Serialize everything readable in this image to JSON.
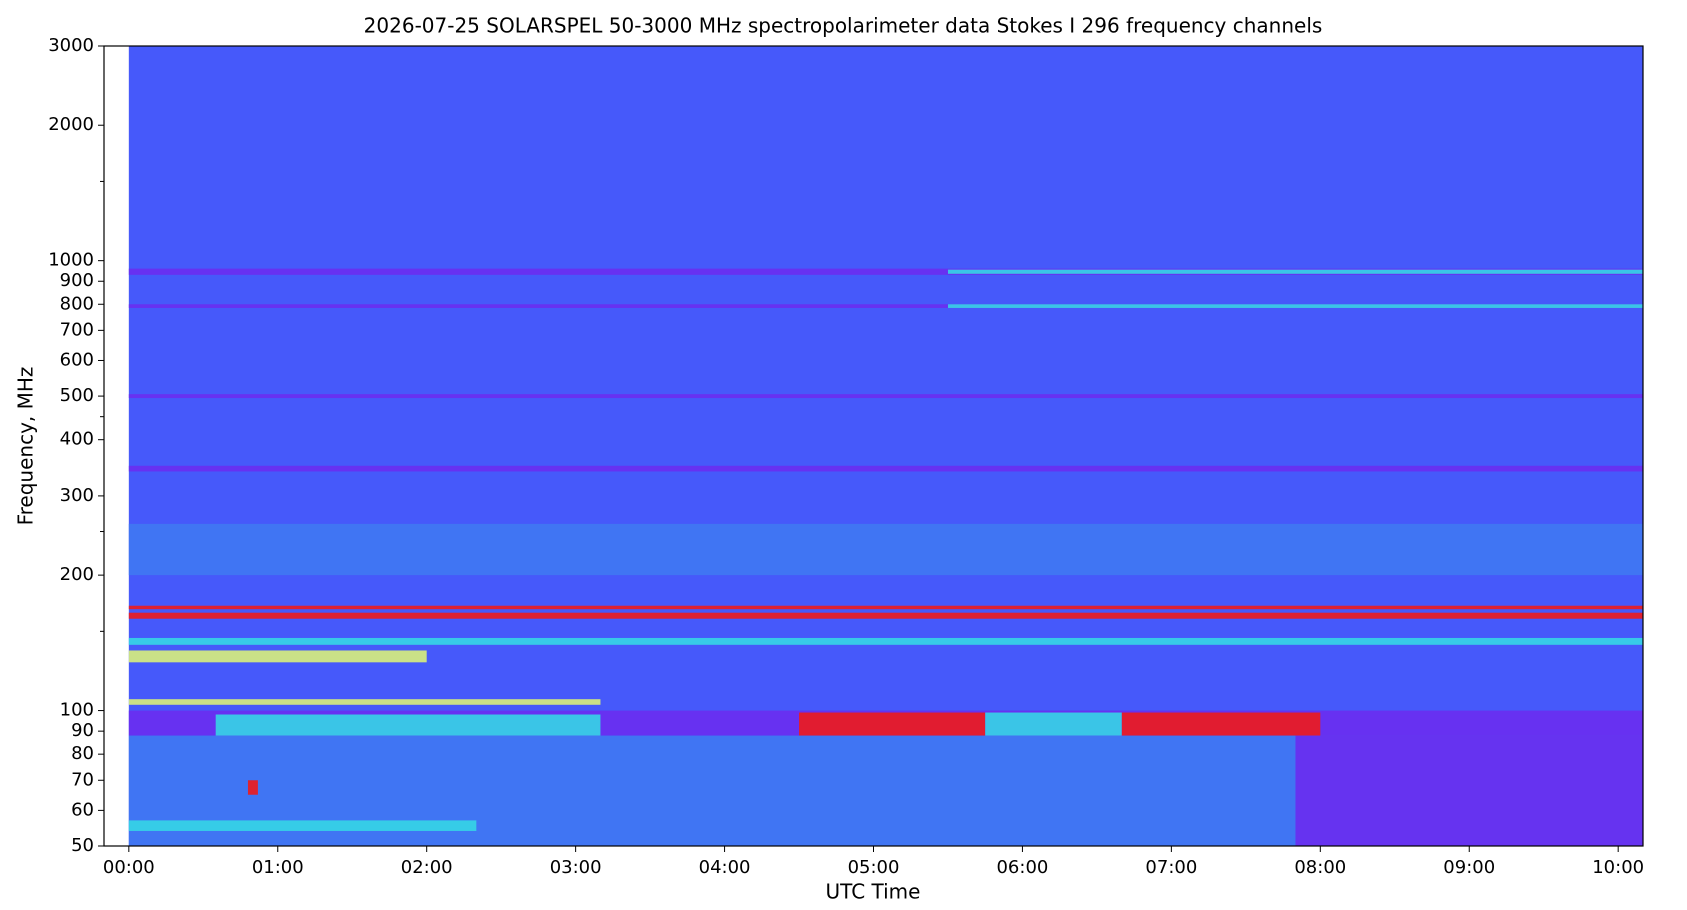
{
  "chart_data": {
    "type": "spectrogram",
    "title": "2026-07-25      SOLARSPEL   50-3000 MHz spectropolarimeter data      Stokes I   296 frequency channels",
    "xlabel": "UTC Time",
    "ylabel": "Frequency, MHz",
    "xlim": [
      -10,
      610
    ],
    "xticks": [
      {
        "value": 0,
        "label": "00:00"
      },
      {
        "value": 60,
        "label": "01:00"
      },
      {
        "value": 120,
        "label": "02:00"
      },
      {
        "value": 180,
        "label": "03:00"
      },
      {
        "value": 240,
        "label": "04:00"
      },
      {
        "value": 300,
        "label": "05:00"
      },
      {
        "value": 360,
        "label": "06:00"
      },
      {
        "value": 420,
        "label": "07:00"
      },
      {
        "value": 480,
        "label": "08:00"
      },
      {
        "value": 540,
        "label": "09:00"
      },
      {
        "value": 600,
        "label": "10:00"
      }
    ],
    "ylim": [
      50,
      3000
    ],
    "log_y": true,
    "yticks": [
      50,
      60,
      70,
      80,
      90,
      100,
      200,
      300,
      400,
      500,
      600,
      700,
      800,
      900,
      1000,
      2000,
      3000
    ],
    "yminorticks": [
      150,
      250,
      450,
      1500
    ],
    "data_start": 0,
    "colormap": [
      "#4659fa",
      "#6a2cf0",
      "#35d6e6",
      "#d8f07a",
      "#ee1b1b",
      "#3f78f2"
    ],
    "regions": [
      {
        "t": [
          0,
          610
        ],
        "f": [
          50,
          88
        ],
        "level": 5
      },
      {
        "t": [
          470,
          610
        ],
        "f": [
          50,
          88
        ],
        "level": 1
      },
      {
        "t": [
          0,
          610
        ],
        "f": [
          200,
          260
        ],
        "level": 5
      },
      {
        "t": [
          0,
          610
        ],
        "f": [
          930,
          960
        ],
        "level": 1
      },
      {
        "t": [
          330,
          610
        ],
        "f": [
          935,
          955
        ],
        "level": 2
      },
      {
        "t": [
          0,
          610
        ],
        "f": [
          785,
          800
        ],
        "level": 1
      },
      {
        "t": [
          330,
          610
        ],
        "f": [
          785,
          800
        ],
        "level": 2
      },
      {
        "t": [
          0,
          610
        ],
        "f": [
          495,
          505
        ],
        "level": 1
      },
      {
        "t": [
          0,
          610
        ],
        "f": [
          340,
          350
        ],
        "level": 1
      },
      {
        "t": [
          0,
          610
        ],
        "f": [
          140,
          145
        ],
        "level": 2
      },
      {
        "t": [
          0,
          120
        ],
        "f": [
          128,
          136
        ],
        "level": 3
      },
      {
        "t": [
          0,
          610
        ],
        "f": [
          88,
          100
        ],
        "level": 1
      },
      {
        "t": [
          0,
          190
        ],
        "f": [
          103,
          106
        ],
        "level": 3
      },
      {
        "t": [
          35,
          190
        ],
        "f": [
          88,
          98
        ],
        "level": 2
      },
      {
        "t": [
          270,
          345
        ],
        "f": [
          88,
          99
        ],
        "level": 4
      },
      {
        "t": [
          400,
          480
        ],
        "f": [
          88,
          99
        ],
        "level": 4
      },
      {
        "t": [
          345,
          400
        ],
        "f": [
          88,
          99
        ],
        "level": 2
      },
      {
        "t": [
          0,
          610
        ],
        "f": [
          168,
          171
        ],
        "level": 4
      },
      {
        "t": [
          0,
          610
        ],
        "f": [
          160,
          165
        ],
        "level": 4
      },
      {
        "t": [
          0,
          140
        ],
        "f": [
          54,
          57
        ],
        "level": 2
      },
      {
        "t": [
          48,
          52
        ],
        "f": [
          65,
          70
        ],
        "level": 4
      }
    ]
  }
}
